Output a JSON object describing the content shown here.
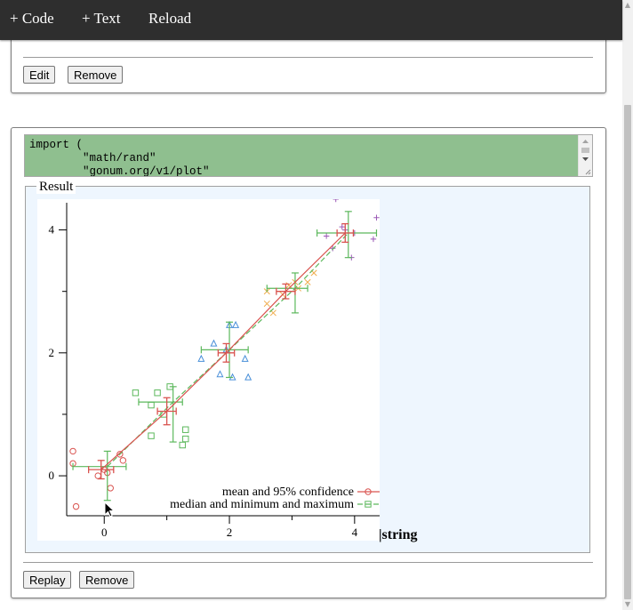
{
  "toolbar": {
    "add_code": "+ Code",
    "add_text": "+ Text",
    "reload": "Reload"
  },
  "cell1": {
    "edit_label": "Edit",
    "remove_label": "Remove"
  },
  "cell2": {
    "code": "import (\n        \"math/rand\"\n        \"gonum.org/v1/plot\"",
    "result_legend": "Result",
    "type_label": "|string",
    "replay_label": "Replay",
    "remove_label": "Remove"
  },
  "chart_data": {
    "type": "scatter",
    "xlim": [
      -0.6,
      4.4
    ],
    "ylim": [
      -0.65,
      4.5
    ],
    "xticks": [
      "0",
      "2",
      "4"
    ],
    "yticks": [
      "0",
      "2",
      "4"
    ],
    "legend_position": "bottom-right",
    "legend": [
      {
        "label": "mean and 95% confidence",
        "color": "#d9534f",
        "dash": "solid",
        "marker": "circle"
      },
      {
        "label": "median and minimum and maximum",
        "color": "#5cb85c",
        "dash": "dashed",
        "marker": "square"
      }
    ],
    "mean_series": {
      "x": [
        -0.05,
        1.0,
        1.95,
        2.9,
        3.85
      ],
      "y": [
        0.1,
        1.05,
        2.0,
        3.0,
        3.95
      ],
      "xerr": [
        0.2,
        0.15,
        0.13,
        0.15,
        0.13
      ],
      "yerr": [
        0.15,
        0.22,
        0.15,
        0.12,
        0.15
      ]
    },
    "median_series": {
      "x": [
        0.05,
        1.1,
        2.0,
        3.05,
        3.9
      ],
      "y": [
        0.15,
        1.2,
        2.05,
        3.05,
        3.95
      ],
      "xmin": [
        -0.5,
        0.55,
        1.55,
        2.6,
        3.4
      ],
      "xmax": [
        0.35,
        1.25,
        2.3,
        3.25,
        4.35
      ],
      "ymin": [
        -0.4,
        0.55,
        1.6,
        2.65,
        3.55
      ],
      "ymax": [
        0.4,
        1.45,
        2.5,
        3.3,
        4.3
      ]
    },
    "scatter_groups": [
      {
        "marker": "circle",
        "color": "#d9534f",
        "points": [
          [
            -0.5,
            0.4
          ],
          [
            -0.5,
            0.2
          ],
          [
            -0.45,
            -0.5
          ],
          [
            -0.1,
            0.0
          ],
          [
            0.05,
            0.05
          ],
          [
            0.1,
            -0.2
          ],
          [
            0.25,
            0.35
          ],
          [
            0.3,
            0.25
          ],
          [
            0.0,
            0.1
          ]
        ]
      },
      {
        "marker": "square",
        "color": "#5cb85c",
        "points": [
          [
            0.5,
            1.35
          ],
          [
            0.75,
            1.15
          ],
          [
            0.85,
            1.35
          ],
          [
            1.05,
            1.45
          ],
          [
            0.75,
            0.65
          ],
          [
            1.25,
            0.5
          ],
          [
            1.3,
            0.6
          ],
          [
            1.3,
            0.75
          ],
          [
            0.95,
            1.0
          ]
        ]
      },
      {
        "marker": "triangle",
        "color": "#4a90d9",
        "points": [
          [
            1.55,
            1.9
          ],
          [
            1.75,
            2.15
          ],
          [
            2.0,
            2.45
          ],
          [
            2.1,
            2.45
          ],
          [
            2.25,
            1.9
          ],
          [
            2.3,
            1.6
          ],
          [
            1.85,
            1.65
          ],
          [
            2.05,
            1.6
          ],
          [
            1.95,
            2.05
          ]
        ]
      },
      {
        "marker": "cross",
        "color": "#f0ad4e",
        "points": [
          [
            2.6,
            3.0
          ],
          [
            2.6,
            2.8
          ],
          [
            2.7,
            2.65
          ],
          [
            3.05,
            3.15
          ],
          [
            3.25,
            3.15
          ],
          [
            3.35,
            3.3
          ],
          [
            2.85,
            2.95
          ],
          [
            3.1,
            3.05
          ],
          [
            2.95,
            3.1
          ]
        ]
      },
      {
        "marker": "plus",
        "color": "#9b59b6",
        "points": [
          [
            3.55,
            3.9
          ],
          [
            3.7,
            4.5
          ],
          [
            3.85,
            4.0
          ],
          [
            3.95,
            3.55
          ],
          [
            4.3,
            3.85
          ],
          [
            4.35,
            4.2
          ],
          [
            3.65,
            3.7
          ],
          [
            3.8,
            4.05
          ],
          [
            4.0,
            3.95
          ]
        ]
      }
    ]
  }
}
